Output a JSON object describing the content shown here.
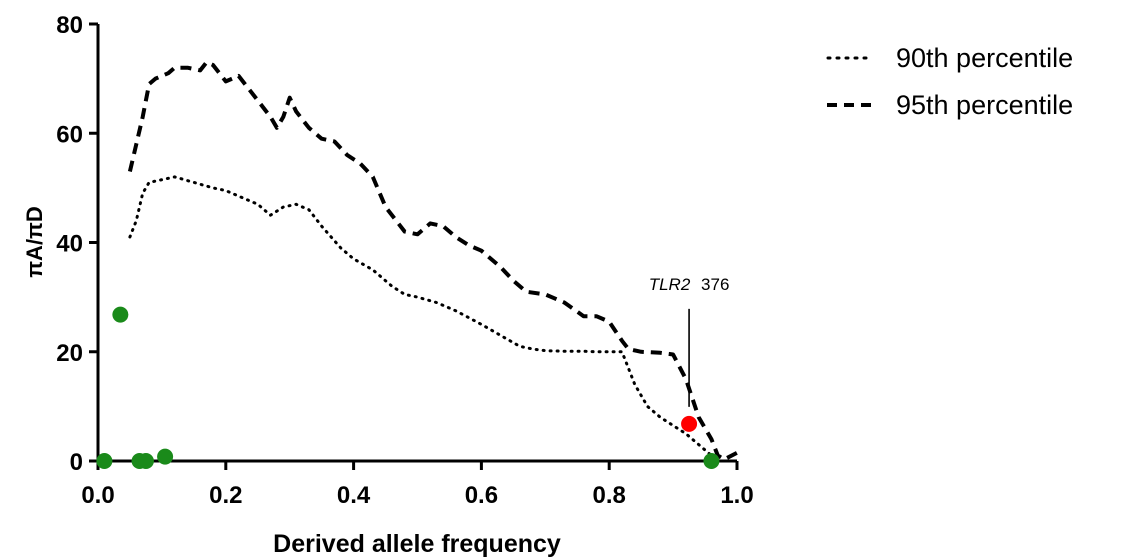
{
  "chart_data": {
    "type": "line",
    "title": "",
    "xlabel": "Derived allele frequency",
    "ylabel": "πA/πD",
    "xlim": [
      0,
      1.0
    ],
    "ylim": [
      0,
      80
    ],
    "x_ticks": [
      "0.0",
      "0.2",
      "0.4",
      "0.6",
      "0.8",
      "1.0"
    ],
    "y_ticks": [
      "0",
      "20",
      "40",
      "60",
      "80"
    ],
    "grid": false,
    "legend_position": "top-right",
    "series": [
      {
        "name": "90th percentile",
        "style": "dotted",
        "color": "#000000",
        "x": [
          0.05,
          0.06,
          0.07,
          0.08,
          0.1,
          0.12,
          0.15,
          0.18,
          0.2,
          0.22,
          0.25,
          0.27,
          0.29,
          0.31,
          0.33,
          0.35,
          0.38,
          0.4,
          0.43,
          0.46,
          0.48,
          0.5,
          0.53,
          0.56,
          0.6,
          0.63,
          0.66,
          0.68,
          0.7,
          0.73,
          0.76,
          0.78,
          0.8,
          0.82,
          0.83,
          0.84,
          0.86,
          0.88,
          0.9,
          0.92,
          0.94,
          0.96,
          0.97
        ],
        "y": [
          41,
          44,
          49,
          51,
          51.5,
          52,
          51,
          50,
          49.5,
          48.5,
          47,
          45,
          46.5,
          47,
          46,
          43,
          39,
          37,
          35,
          32,
          30.5,
          30,
          29,
          27.5,
          25,
          23,
          21,
          20.5,
          20.2,
          20.1,
          20.1,
          20,
          20,
          20,
          17,
          14,
          10,
          8,
          6.5,
          5,
          3,
          1,
          0.5
        ]
      },
      {
        "name": "95th percentile",
        "style": "dashed",
        "color": "#000000",
        "x": [
          0.05,
          0.06,
          0.07,
          0.08,
          0.09,
          0.11,
          0.12,
          0.14,
          0.16,
          0.17,
          0.18,
          0.2,
          0.22,
          0.23,
          0.25,
          0.27,
          0.28,
          0.29,
          0.3,
          0.31,
          0.33,
          0.35,
          0.37,
          0.39,
          0.41,
          0.43,
          0.45,
          0.48,
          0.5,
          0.52,
          0.54,
          0.56,
          0.58,
          0.6,
          0.63,
          0.65,
          0.67,
          0.7,
          0.73,
          0.76,
          0.78,
          0.8,
          0.82,
          0.83,
          0.85,
          0.88,
          0.9,
          0.92,
          0.94,
          0.96,
          0.97,
          0.98,
          1.0
        ],
        "y": [
          53,
          58,
          63,
          69,
          70,
          71,
          72,
          72,
          71.5,
          73,
          72.5,
          69.5,
          70.5,
          69,
          66,
          63,
          61,
          63,
          66.5,
          64,
          61,
          59,
          58.5,
          56,
          54.5,
          52,
          46.5,
          42,
          41.5,
          43.5,
          43,
          41,
          39.5,
          38.5,
          35.5,
          33,
          31,
          30.5,
          29,
          26.5,
          26.5,
          25.5,
          22,
          20.5,
          20,
          19.8,
          19.5,
          15,
          8,
          4,
          1,
          0.3,
          1.5
        ]
      },
      {
        "name": "",
        "type": "scatter",
        "color": "#1a8a1a",
        "x": [
          0.01,
          0.035,
          0.065,
          0.075,
          0.105,
          0.96
        ],
        "y": [
          0,
          26.8,
          0,
          0,
          0.8,
          0
        ]
      },
      {
        "name": "",
        "type": "scatter",
        "color": "#ff0000",
        "x": [
          0.925
        ],
        "y": [
          6.8
        ]
      }
    ],
    "annotations": [
      {
        "italic": "TLR2",
        "text": "376",
        "x": 0.925,
        "y": 6.8
      }
    ]
  }
}
